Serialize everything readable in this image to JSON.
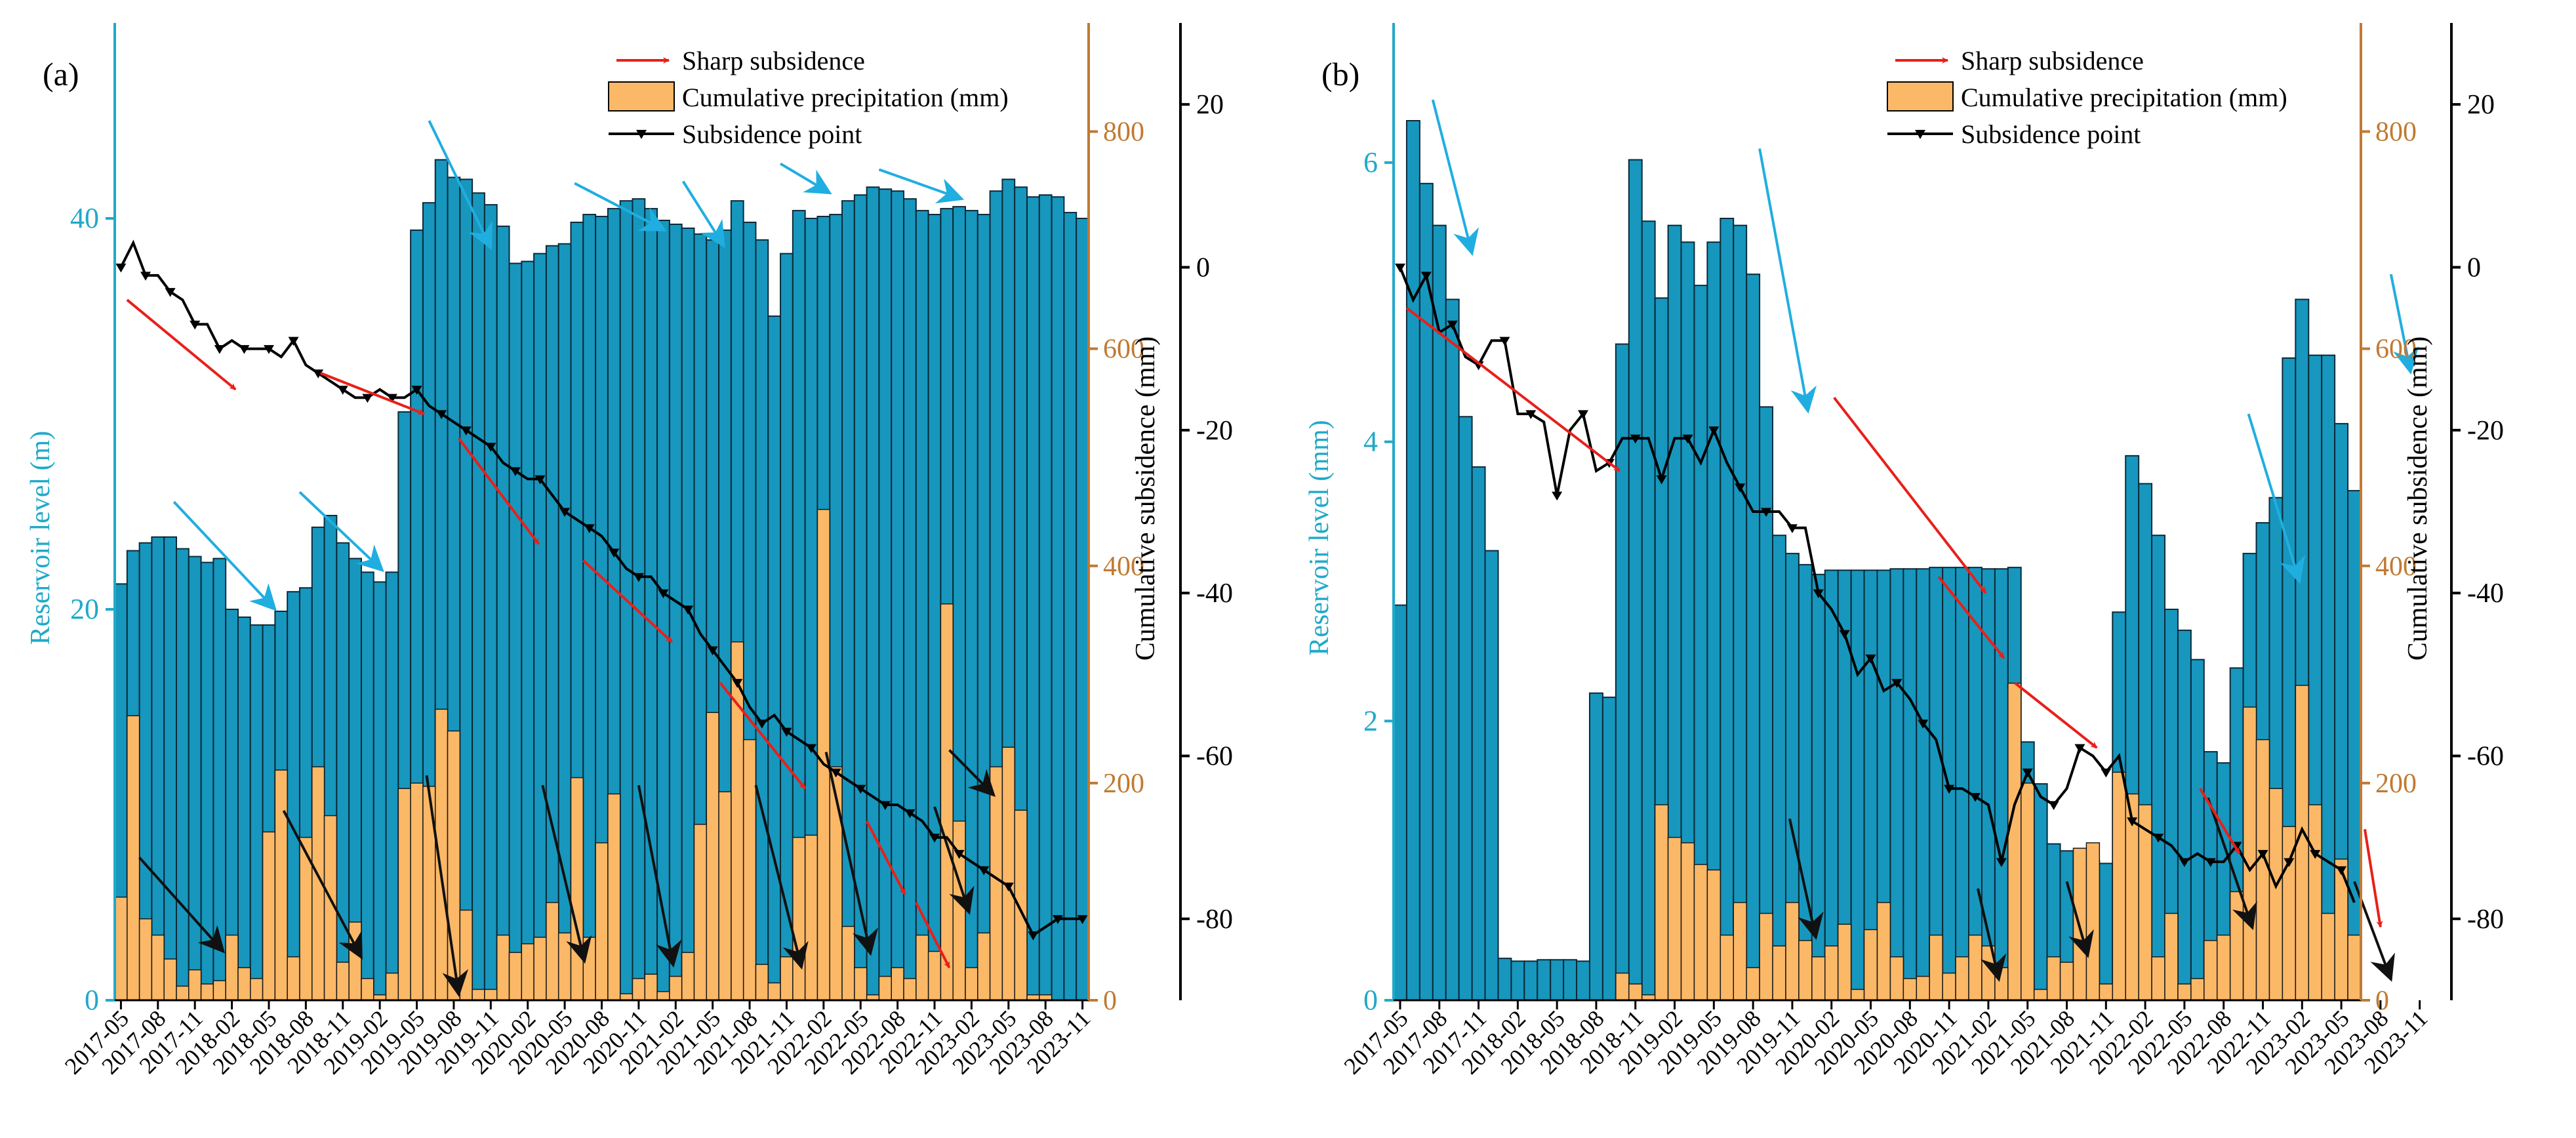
{
  "chart_data": [
    {
      "type": "bar",
      "panel_label": "(a)",
      "left_axis_label": "Reservoir level (m)",
      "precip_axis_label": "",
      "right_axis_label": "Cumulative subsidence (mm)",
      "legend": [
        "Sharp subsidence",
        "Cumulative precipitation (mm)",
        "Subsidence point"
      ],
      "x_tick_labels": [
        "2017-05",
        "2017-08",
        "2017-11",
        "2018-02",
        "2018-05",
        "2018-08",
        "2018-11",
        "2019-02",
        "2019-05",
        "2019-08",
        "2019-11",
        "2020-02",
        "2020-05",
        "2020-08",
        "2020-11",
        "2021-02",
        "2021-05",
        "2021-08",
        "2021-11",
        "2022-02",
        "2022-05",
        "2022-08",
        "2022-11",
        "2023-02",
        "2023-05",
        "2023-08",
        "2023-11"
      ],
      "x_tick_every": 3,
      "reservoir_ylim": [
        0,
        50
      ],
      "reservoir_ticks": [
        0,
        20,
        40
      ],
      "precip_ylim": [
        0,
        900
      ],
      "precip_ticks": [
        0,
        200,
        400,
        600,
        800
      ],
      "subsidence_ylim": [
        -90,
        30
      ],
      "subsidence_ticks": [
        -80,
        -60,
        -40,
        -20,
        0,
        20
      ],
      "reservoir_level": [
        21.3,
        23.0,
        23.4,
        23.7,
        23.7,
        23.1,
        22.7,
        22.4,
        22.6,
        20.0,
        19.6,
        19.2,
        19.2,
        19.9,
        20.9,
        21.1,
        24.2,
        24.8,
        23.4,
        22.6,
        21.9,
        21.4,
        21.9,
        30.1,
        39.4,
        40.8,
        43.0,
        42.1,
        42.0,
        41.3,
        40.7,
        39.6,
        37.7,
        37.8,
        38.2,
        38.6,
        38.7,
        39.8,
        40.2,
        40.1,
        40.5,
        40.9,
        41.0,
        40.5,
        39.9,
        39.7,
        39.5,
        39.2,
        38.9,
        39.4,
        40.9,
        39.8,
        38.9,
        35.0,
        38.2,
        40.4,
        40.0,
        40.1,
        40.2,
        40.9,
        41.2,
        41.6,
        41.5,
        41.4,
        41.0,
        40.4,
        40.2,
        40.5,
        40.6,
        40.4,
        40.2,
        41.4,
        42.0,
        41.6,
        41.1,
        41.2,
        41.1,
        40.3,
        40.0
      ],
      "precipitation": [
        95,
        262,
        75,
        60,
        38,
        13,
        28,
        15,
        18,
        60,
        30,
        20,
        155,
        212,
        40,
        150,
        215,
        170,
        35,
        72,
        20,
        5,
        25,
        195,
        200,
        197,
        268,
        248,
        83,
        10,
        10,
        60,
        44,
        52,
        58,
        90,
        62,
        205,
        58,
        145,
        190,
        6,
        20,
        24,
        8,
        22,
        44,
        162,
        265,
        192,
        330,
        240,
        33,
        16,
        40,
        150,
        152,
        452,
        215,
        68,
        30,
        5,
        22,
        30,
        20,
        60,
        45,
        365,
        165,
        30,
        62,
        215,
        233,
        175,
        5,
        5,
        0,
        0,
        0
      ],
      "subsidence": [
        0,
        3,
        -1,
        -1,
        -3,
        -4,
        -7,
        -7,
        -10,
        -9,
        -10,
        -10,
        -10,
        -11,
        -9,
        -12,
        -13,
        -14,
        -15,
        -16,
        -16,
        -15,
        -16,
        -16,
        -15,
        -17,
        -18,
        -19,
        -20,
        -21,
        -22,
        -24,
        -25,
        -26,
        -26,
        -28,
        -30,
        -31,
        -32,
        -33,
        -35,
        -37,
        -38,
        -38,
        -40,
        -41,
        -42,
        -45,
        -47,
        -49,
        -51,
        -54,
        -56,
        -55,
        -57,
        -58,
        -59,
        -61,
        -62,
        -63,
        -64,
        -65,
        -66,
        -66,
        -67,
        -68,
        -70,
        -70,
        -72,
        -73,
        -74,
        -75,
        -76,
        -79,
        -82,
        -81,
        -80,
        -80,
        -80
      ],
      "subsidence_marked_every": 2,
      "red_arrows": [
        [
          0.5,
          -4,
          9.3,
          -15
        ],
        [
          16.2,
          -13,
          24.6,
          -18
        ],
        [
          27.4,
          -21,
          33.9,
          -34
        ],
        [
          37.5,
          -36,
          44.7,
          -46
        ],
        [
          48.6,
          -51,
          55.5,
          -64
        ],
        [
          60.5,
          -68,
          63.6,
          -77
        ],
        [
          64.5,
          -78,
          67.2,
          -86
        ]
      ],
      "blue_arrows": [
        [
          4.3,
          25.5,
          12.5,
          20
        ],
        [
          14.5,
          26,
          21.2,
          22
        ],
        [
          25,
          45,
          30,
          38.5
        ],
        [
          36.8,
          41.8,
          44.1,
          39.4
        ],
        [
          45.6,
          41.9,
          48.9,
          38.6
        ],
        [
          53.5,
          42.8,
          57.5,
          41.3
        ],
        [
          61.5,
          42.5,
          68.2,
          41
        ]
      ],
      "black_arrows": [
        [
          1.5,
          7.3,
          8.3,
          2.5
        ],
        [
          13.2,
          9.7,
          19.5,
          2.2
        ],
        [
          24.8,
          11.5,
          27.4,
          0.3
        ],
        [
          34.2,
          11,
          37.6,
          2
        ],
        [
          42,
          11,
          44.8,
          1.8
        ],
        [
          51.5,
          11,
          55.2,
          1.7
        ],
        [
          57.2,
          12.7,
          60.8,
          2.4
        ],
        [
          67.2,
          12.8,
          70.8,
          10.5
        ],
        [
          66,
          9.9,
          68.8,
          4.5
        ]
      ]
    },
    {
      "type": "bar",
      "panel_label": "(b)",
      "left_axis_label": "Reservoir level (mm)",
      "precip_axis_label": "",
      "right_axis_label": "Cumulative subsidence (mm)",
      "legend": [
        "Sharp subsidence",
        "Cumulative precipitation (mm)",
        "Subsidence point"
      ],
      "x_tick_labels": [
        "2017-05",
        "2017-08",
        "2017-11",
        "2018-02",
        "2018-05",
        "2018-08",
        "2018-11",
        "2019-02",
        "2019-05",
        "2019-08",
        "2019-11",
        "2020-02",
        "2020-05",
        "2020-08",
        "2020-11",
        "2021-02",
        "2021-05",
        "2021-08",
        "2021-11",
        "2022-02",
        "2022-05",
        "2022-08",
        "2022-11",
        "2023-02",
        "2023-05",
        "2023-08",
        "2023-11"
      ],
      "x_tick_every": 3,
      "reservoir_ylim": [
        0,
        7
      ],
      "reservoir_ticks": [
        0,
        2,
        4,
        6
      ],
      "precip_ylim": [
        0,
        900
      ],
      "precip_ticks": [
        0,
        200,
        400,
        600,
        800
      ],
      "subsidence_ylim": [
        -90,
        30
      ],
      "subsidence_ticks": [
        -80,
        -60,
        -40,
        -20,
        0,
        20
      ],
      "reservoir_level": [
        2.83,
        6.3,
        5.85,
        5.55,
        5.02,
        4.18,
        3.82,
        3.22,
        0.3,
        0.28,
        0.28,
        0.29,
        0.29,
        0.29,
        0.28,
        2.2,
        2.17,
        4.7,
        6.02,
        5.58,
        5.03,
        5.55,
        5.43,
        5.12,
        5.43,
        5.6,
        5.55,
        5.2,
        4.25,
        3.33,
        3.2,
        3.12,
        3.05,
        3.08,
        3.08,
        3.08,
        3.08,
        3.08,
        3.09,
        3.09,
        3.09,
        3.1,
        3.1,
        3.1,
        3.1,
        3.09,
        3.09,
        3.1,
        1.85,
        1.55,
        1.12,
        1.07,
        1.03,
        1.0,
        0.98,
        2.78,
        3.9,
        3.7,
        3.33,
        2.8,
        2.65,
        2.44,
        1.78,
        1.7,
        2.38,
        3.2,
        3.42,
        3.6,
        4.6,
        5.02,
        4.62,
        4.62,
        4.13,
        3.65
      ],
      "precipitation": [
        0,
        0,
        0,
        0,
        0,
        0,
        0,
        0,
        0,
        0,
        0,
        0,
        0,
        0,
        0,
        0,
        0,
        25,
        15,
        5,
        180,
        150,
        145,
        125,
        120,
        60,
        90,
        30,
        80,
        50,
        90,
        55,
        40,
        50,
        70,
        10,
        65,
        90,
        40,
        20,
        22,
        60,
        25,
        40,
        60,
        50,
        30,
        292,
        200,
        10,
        40,
        35,
        140,
        145,
        15,
        210,
        190,
        180,
        40,
        80,
        15,
        20,
        55,
        60,
        100,
        270,
        240,
        195,
        160,
        290,
        180,
        80,
        130,
        60
      ],
      "subsidence": [
        0,
        -4,
        -1,
        -8,
        -7,
        -11,
        -12,
        -9,
        -9,
        -18,
        -18,
        -19,
        -28,
        -20,
        -18,
        -25,
        -24,
        -21,
        -21,
        -21,
        -26,
        -21,
        -21,
        -24,
        -20,
        -24,
        -27,
        -30,
        -30,
        -30,
        -32,
        -32,
        -40,
        -42,
        -45,
        -50,
        -48,
        -52,
        -51,
        -53,
        -56,
        -58,
        -64,
        -64,
        -65,
        -66,
        -73,
        -66,
        -62,
        -65,
        -66,
        -64,
        -59,
        -60,
        -62,
        -60,
        -68,
        -69,
        -70,
        -71,
        -73,
        -72,
        -73,
        -73,
        -71,
        -74,
        -72,
        -76,
        -73,
        -69,
        -72,
        -73,
        -74,
        -78
      ],
      "subsidence_marked_every": 2,
      "red_arrows": [
        [
          0.5,
          -5,
          16.8,
          -25
        ],
        [
          33.2,
          -16,
          44.8,
          -40
        ],
        [
          41.2,
          -38,
          46.2,
          -48
        ],
        [
          47,
          -51,
          53.3,
          -59
        ],
        [
          61.2,
          -64,
          64.2,
          -72
        ],
        [
          73.8,
          -69,
          75,
          -81
        ]
      ],
      "blue_arrows": [
        [
          2.5,
          6.45,
          5.5,
          5.35
        ],
        [
          27.5,
          6.1,
          31.2,
          4.22
        ],
        [
          64.9,
          4.2,
          68.8,
          3.0
        ],
        [
          75.8,
          5.2,
          77.3,
          4.5
        ]
      ],
      "black_arrows": [
        [
          29.8,
          1.3,
          31.8,
          0.45
        ],
        [
          44.2,
          0.8,
          45.8,
          0.15
        ],
        [
          51,
          0.85,
          52.6,
          0.32
        ],
        [
          61.8,
          1.45,
          65.2,
          0.52
        ],
        [
          73,
          0.85,
          75.8,
          0.15
        ]
      ]
    }
  ]
}
